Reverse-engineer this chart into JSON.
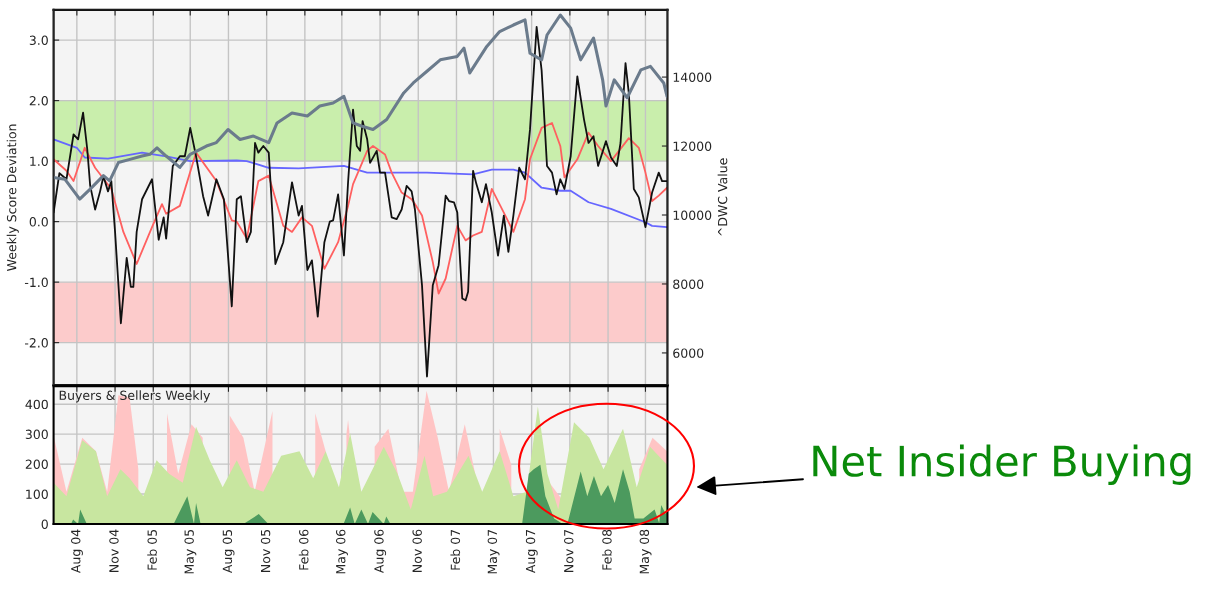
{
  "chart_data": [
    {
      "type": "line",
      "ylabel": "Weekly Score Deviation",
      "y2label": "^DWC Value",
      "tick_labels": "y",
      "grid": true,
      "xlim": [
        "2004-06-06",
        "2008-06-23"
      ],
      "ylim": [
        -2.7,
        3.5
      ],
      "y2lim": [
        5070,
        15950
      ],
      "xticks": [
        {
          "value": "2004-08-01",
          "label": null
        },
        {
          "value": "2004-11-01",
          "label": null
        },
        {
          "value": "2005-02-01",
          "label": null
        },
        {
          "value": "2005-05-01",
          "label": null
        },
        {
          "value": "2005-08-01",
          "label": null
        },
        {
          "value": "2005-11-01",
          "label": null
        },
        {
          "value": "2006-02-01",
          "label": null
        },
        {
          "value": "2006-05-01",
          "label": null
        },
        {
          "value": "2006-08-01",
          "label": null
        },
        {
          "value": "2006-11-01",
          "label": null
        },
        {
          "value": "2007-02-01",
          "label": null
        },
        {
          "value": "2007-05-01",
          "label": null
        },
        {
          "value": "2007-08-01",
          "label": null
        },
        {
          "value": "2007-11-01",
          "label": null
        },
        {
          "value": "2008-02-01",
          "label": null
        },
        {
          "value": "2008-05-01",
          "label": null
        }
      ],
      "yticks": [
        {
          "value": -2,
          "label": "-2.0"
        },
        {
          "value": -1,
          "label": "-1.0"
        },
        {
          "value": 0,
          "label": "0.0"
        },
        {
          "value": 1,
          "label": "1.0"
        },
        {
          "value": 2,
          "label": "2.0"
        },
        {
          "value": 3,
          "label": "3.0"
        }
      ],
      "y2ticks": [
        6000,
        8000,
        10000,
        12000,
        14000
      ],
      "bands": [
        {
          "axis": "y",
          "from": 1,
          "to": 2,
          "color": "#c9eeac"
        },
        {
          "axis": "y",
          "from": -2,
          "to": -1,
          "color": "#fccbcb"
        }
      ],
      "series": [
        {
          "color": "#6b7b8c",
          "axis": "y2",
          "x": [
            "2004-06-06",
            "2004-07-03",
            "2004-08-08",
            "2004-09-02",
            "2004-10-04",
            "2004-10-19",
            "2004-11-09",
            "2004-12-09",
            "2005-01-05",
            "2005-01-24",
            "2005-02-10",
            "2005-03-04",
            "2005-04-06",
            "2005-05-01",
            "2005-06-09",
            "2005-07-03",
            "2005-07-31",
            "2005-08-29",
            "2005-09-30",
            "2005-11-06",
            "2005-11-26",
            "2006-01-01",
            "2006-02-07",
            "2006-03-09",
            "2006-04-10",
            "2006-05-06",
            "2006-05-28",
            "2006-06-17",
            "2006-07-15",
            "2006-08-17",
            "2006-09-27",
            "2006-10-20",
            "2006-11-22",
            "2006-12-24",
            "2007-02-03",
            "2007-02-19",
            "2007-03-05",
            "2007-04-15",
            "2007-05-16",
            "2007-06-18",
            "2007-07-16",
            "2007-07-28",
            "2007-08-25",
            "2007-09-07",
            "2007-10-09",
            "2007-11-03",
            "2007-11-27",
            "2007-12-28",
            "2008-01-19",
            "2008-01-27",
            "2008-02-16",
            "2008-03-18",
            "2008-04-20",
            "2008-05-13",
            "2008-06-14",
            "2008-06-22"
          ],
          "values": [
            11090,
            11040,
            10460,
            10750,
            11140,
            10990,
            11520,
            11620,
            11710,
            11760,
            11950,
            11710,
            11380,
            11760,
            12000,
            12100,
            12480,
            12190,
            12290,
            12100,
            12670,
            12960,
            12870,
            13160,
            13250,
            13440,
            12670,
            12580,
            12480,
            12770,
            13540,
            13830,
            14170,
            14500,
            14600,
            14840,
            14120,
            14890,
            15320,
            15510,
            15660,
            14690,
            14500,
            15220,
            15800,
            15420,
            14500,
            15130,
            13920,
            13160,
            13920,
            13400,
            14210,
            14310,
            13830,
            13440
          ]
        },
        {
          "color": "#6666ff",
          "x": [
            "2004-06-06",
            "2004-08-01",
            "2004-08-20",
            "2004-10-15",
            "2005-01-05",
            "2005-03-04",
            "2005-05-01",
            "2005-08-21",
            "2005-09-14",
            "2005-11-06",
            "2006-01-17",
            "2006-05-06",
            "2006-07-01",
            "2006-08-01",
            "2006-11-22",
            "2007-03-13",
            "2007-04-27",
            "2007-06-18",
            "2007-07-16",
            "2007-08-25",
            "2007-10-09",
            "2007-11-03",
            "2007-12-16",
            "2008-02-08",
            "2008-05-01",
            "2008-05-17",
            "2008-06-22"
          ],
          "values": [
            1.36,
            1.22,
            1.06,
            1.04,
            1.14,
            1.08,
            1.0,
            1.01,
            1.0,
            0.89,
            0.88,
            0.92,
            0.81,
            0.81,
            0.81,
            0.78,
            0.86,
            0.86,
            0.81,
            0.56,
            0.51,
            0.51,
            0.32,
            0.21,
            -0.01,
            -0.07,
            -0.09
          ]
        },
        {
          "color": "#ff6060",
          "x": [
            "2004-06-06",
            "2004-07-07",
            "2004-07-24",
            "2004-08-20",
            "2004-09-14",
            "2004-10-23",
            "2004-11-21",
            "2004-12-23",
            "2005-01-29",
            "2005-02-22",
            "2005-03-04",
            "2005-04-06",
            "2005-05-15",
            "2005-07-03",
            "2005-08-09",
            "2005-08-21",
            "2005-09-14",
            "2005-10-12",
            "2005-11-06",
            "2005-12-11",
            "2006-01-01",
            "2006-01-25",
            "2006-02-18",
            "2006-03-20",
            "2006-04-22",
            "2006-05-16",
            "2006-05-28",
            "2006-07-01",
            "2006-07-15",
            "2006-08-13",
            "2006-08-29",
            "2006-09-22",
            "2006-10-16",
            "2006-10-24",
            "2006-11-10",
            "2006-12-06",
            "2006-12-20",
            "2007-01-06",
            "2007-02-03",
            "2007-02-23",
            "2007-03-13",
            "2007-04-03",
            "2007-04-27",
            "2007-05-26",
            "2007-06-18",
            "2007-07-16",
            "2007-07-28",
            "2007-08-25",
            "2007-09-19",
            "2007-10-09",
            "2007-10-19",
            "2007-11-19",
            "2007-12-16",
            "2008-01-08",
            "2008-02-08",
            "2008-03-22",
            "2008-04-15",
            "2008-05-01",
            "2008-05-17",
            "2008-06-02",
            "2008-06-22"
          ],
          "values": [
            1.03,
            0.84,
            0.67,
            1.22,
            0.89,
            0.54,
            -0.17,
            -0.7,
            -0.09,
            0.29,
            0.13,
            0.26,
            1.14,
            0.67,
            0.02,
            0.0,
            -0.28,
            0.67,
            0.76,
            -0.07,
            -0.17,
            0.07,
            -0.07,
            -0.78,
            -0.34,
            0.26,
            0.62,
            1.17,
            1.25,
            1.11,
            0.81,
            0.48,
            0.37,
            0.29,
            0.1,
            -0.67,
            -1.19,
            -0.94,
            -0.07,
            -0.31,
            -0.23,
            -0.17,
            0.54,
            0.15,
            -0.17,
            0.37,
            1.03,
            1.55,
            1.63,
            1.25,
            0.73,
            1.03,
            1.47,
            1.25,
            1.0,
            1.38,
            1.22,
            0.81,
            0.34,
            0.43,
            0.56
          ]
        },
        {
          "color": "#111111",
          "x": [
            "2004-06-06",
            "2004-06-20",
            "2004-07-07",
            "2004-07-24",
            "2004-08-04",
            "2004-08-16",
            "2004-08-26",
            "2004-09-02",
            "2004-09-14",
            "2004-09-26",
            "2004-10-04",
            "2004-10-15",
            "2004-10-23",
            "2004-11-01",
            "2004-11-15",
            "2004-11-29",
            "2004-12-09",
            "2004-12-15",
            "2004-12-23",
            "2005-01-05",
            "2005-01-29",
            "2005-02-14",
            "2005-02-26",
            "2005-03-04",
            "2005-03-20",
            "2005-04-06",
            "2005-04-18",
            "2005-05-01",
            "2005-05-15",
            "2005-06-01",
            "2005-06-13",
            "2005-07-03",
            "2005-07-21",
            "2005-08-09",
            "2005-08-21",
            "2005-08-31",
            "2005-09-14",
            "2005-09-24",
            "2005-10-04",
            "2005-10-12",
            "2005-10-24",
            "2005-11-06",
            "2005-11-22",
            "2005-12-11",
            "2006-01-01",
            "2006-01-17",
            "2006-01-25",
            "2006-02-07",
            "2006-02-18",
            "2006-03-04",
            "2006-03-20",
            "2006-04-02",
            "2006-04-10",
            "2006-04-22",
            "2006-05-06",
            "2006-05-16",
            "2006-05-28",
            "2006-06-06",
            "2006-06-14",
            "2006-06-20",
            "2006-07-01",
            "2006-07-08",
            "2006-07-24",
            "2006-08-01",
            "2006-08-13",
            "2006-08-29",
            "2006-09-10",
            "2006-09-22",
            "2006-10-04",
            "2006-10-16",
            "2006-10-24",
            "2006-11-10",
            "2006-11-22",
            "2006-12-06",
            "2006-12-20",
            "2007-01-06",
            "2007-01-14",
            "2007-01-26",
            "2007-02-03",
            "2007-02-15",
            "2007-02-23",
            "2007-03-01",
            "2007-03-13",
            "2007-03-21",
            "2007-04-03",
            "2007-04-13",
            "2007-04-27",
            "2007-05-12",
            "2007-05-26",
            "2007-06-06",
            "2007-06-18",
            "2007-07-02",
            "2007-07-16",
            "2007-07-28",
            "2007-08-13",
            "2007-08-25",
            "2007-09-07",
            "2007-09-19",
            "2007-09-30",
            "2007-10-09",
            "2007-10-19",
            "2007-11-03",
            "2007-11-19",
            "2007-12-05",
            "2007-12-16",
            "2007-12-28",
            "2008-01-08",
            "2008-01-27",
            "2008-02-08",
            "2008-02-22",
            "2008-03-02",
            "2008-03-14",
            "2008-03-22",
            "2008-04-03",
            "2008-04-15",
            "2008-05-01",
            "2008-05-17",
            "2008-06-02",
            "2008-06-10",
            "2008-06-22"
          ],
          "values": [
            0.15,
            0.8,
            0.7,
            1.44,
            1.36,
            1.8,
            1.2,
            0.6,
            0.2,
            0.5,
            0.75,
            0.5,
            0.67,
            -0.17,
            -1.68,
            -0.6,
            -1.08,
            -1.08,
            -0.17,
            0.37,
            0.7,
            -0.3,
            0.07,
            -0.28,
            0.92,
            1.08,
            1.08,
            1.55,
            1.08,
            0.42,
            0.1,
            0.7,
            0.37,
            -1.4,
            0.37,
            0.42,
            -0.34,
            -0.17,
            1.3,
            1.14,
            1.25,
            1.14,
            -0.7,
            -0.34,
            0.65,
            0.1,
            0.26,
            -0.8,
            -0.64,
            -1.57,
            -0.34,
            0.0,
            0.02,
            0.45,
            -0.56,
            0.65,
            1.85,
            1.25,
            1.17,
            1.66,
            1.36,
            0.97,
            1.17,
            0.81,
            0.81,
            0.07,
            0.04,
            0.2,
            0.59,
            0.5,
            0.2,
            -1.05,
            -2.56,
            -1.05,
            -0.72,
            0.43,
            0.34,
            0.32,
            0.15,
            -1.27,
            -1.3,
            -1.16,
            0.84,
            0.62,
            0.32,
            0.62,
            0.15,
            -0.56,
            0.1,
            -0.5,
            0.1,
            0.89,
            0.7,
            1.52,
            3.22,
            2.5,
            0.92,
            0.81,
            0.45,
            0.7,
            0.54,
            1.08,
            2.4,
            1.69,
            1.3,
            1.41,
            0.92,
            1.33,
            1.06,
            0.92,
            1.3,
            2.62,
            2.12,
            0.54,
            0.4,
            -0.09,
            0.48,
            0.81,
            0.67,
            0.67
          ]
        }
      ]
    },
    {
      "type": "area",
      "title": "Buyers & Sellers Weekly",
      "grid": true,
      "annotations": [
        "Net Insider Buying"
      ],
      "xlim": [
        "2004-06-06",
        "2008-06-23"
      ],
      "ylim": [
        0,
        460
      ],
      "yticks": [
        0,
        100,
        200,
        300,
        400
      ],
      "xticks": [
        {
          "value": "2004-08-01",
          "label": "Aug 04"
        },
        {
          "value": "2004-11-01",
          "label": "Nov 04"
        },
        {
          "value": "2005-02-01",
          "label": "Feb 05"
        },
        {
          "value": "2005-05-01",
          "label": "May 05"
        },
        {
          "value": "2005-08-01",
          "label": "Aug 05"
        },
        {
          "value": "2005-11-01",
          "label": "Nov 05"
        },
        {
          "value": "2006-02-01",
          "label": "Feb 06"
        },
        {
          "value": "2006-05-01",
          "label": "May 06"
        },
        {
          "value": "2006-08-01",
          "label": "Aug 06"
        },
        {
          "value": "2006-11-01",
          "label": "Nov 06"
        },
        {
          "value": "2007-02-01",
          "label": "Feb 07"
        },
        {
          "value": "2007-05-01",
          "label": "May 07"
        },
        {
          "value": "2007-08-01",
          "label": "Aug 07"
        },
        {
          "value": "2007-11-01",
          "label": "Nov 07"
        },
        {
          "value": "2008-02-01",
          "label": "Feb 08"
        },
        {
          "value": "2008-05-01",
          "label": "May 08"
        }
      ],
      "series": [
        {
          "color": "#ffc4c4",
          "x": [
            "2004-06-06",
            "2004-07-07",
            "2004-08-14",
            "2004-09-16",
            "2004-10-13",
            "2004-11-09",
            "2004-12-06",
            "2004-12-27",
            "2005-01-24",
            "2005-03-06",
            "2005-04-02",
            "2005-05-04",
            "2005-05-31",
            "2005-06-27",
            "2005-08-04",
            "2005-09-06",
            "2005-10-03",
            "2005-11-15",
            "2005-12-17",
            "2006-01-14",
            "2006-02-26",
            "2006-03-23",
            "2006-04-24",
            "2006-05-12",
            "2006-05-16",
            "2006-05-19",
            "2006-06-17",
            "2006-07-19",
            "2006-08-21",
            "2006-09-22",
            "2006-10-19",
            "2006-11-21",
            "2006-12-18",
            "2007-01-14",
            "2007-02-21",
            "2007-03-18",
            "2007-04-19",
            "2007-05-16",
            "2007-06-13",
            "2007-07-09",
            "2007-08-06",
            "2007-09-13",
            "2007-10-15",
            "2007-11-17",
            "2007-12-19",
            "2008-01-21",
            "2008-02-17",
            "2008-03-19",
            "2008-04-16",
            "2008-05-18",
            "2008-06-22"
          ],
          "values": [
            295,
            108,
            288,
            243,
            108,
            430,
            422,
            183,
            null,
            370,
            168,
            333,
            288,
            null,
            362,
            288,
            108,
            377,
            null,
            null,
            370,
            243,
            null,
            300,
            347,
            310,
            null,
            258,
            318,
            108,
            108,
            445,
            288,
            108,
            333,
            168,
            null,
            318,
            198,
            null,
            null,
            138,
            78,
            null,
            null,
            null,
            null,
            null,
            183,
            288,
            243
          ]
        },
        {
          "color": "#c8e6a0",
          "x": [
            "2004-06-06",
            "2004-07-07",
            "2004-08-14",
            "2004-09-16",
            "2004-10-13",
            "2004-11-14",
            "2004-12-06",
            "2005-01-08",
            "2005-02-09",
            "2005-03-11",
            "2005-04-13",
            "2005-05-15",
            "2005-06-17",
            "2005-07-18",
            "2005-08-21",
            "2005-09-22",
            "2005-10-24",
            "2005-12-06",
            "2006-01-19",
            "2006-02-21",
            "2006-03-23",
            "2006-04-24",
            "2006-05-21",
            "2006-06-17",
            "2006-08-10",
            "2006-09-12",
            "2006-10-14",
            "2006-11-16",
            "2006-12-07",
            "2007-01-09",
            "2007-03-02",
            "2007-04-04",
            "2007-05-16",
            "2007-06-18",
            "2007-07-20",
            "2007-08-16",
            "2007-09-08",
            "2007-10-04",
            "2007-11-11",
            "2007-12-18",
            "2008-01-21",
            "2008-03-08",
            "2008-04-10",
            "2008-05-12",
            "2008-06-22"
          ],
          "values": [
            138,
            93,
            280,
            243,
            93,
            183,
            153,
            93,
            213,
            168,
            138,
            325,
            213,
            123,
            213,
            123,
            108,
            228,
            243,
            153,
            243,
            123,
            303,
            108,
            258,
            168,
            48,
            228,
            93,
            108,
            228,
            108,
            243,
            93,
            108,
            392,
            168,
            48,
            340,
            288,
            183,
            318,
            123,
            258,
            198
          ]
        },
        {
          "color": "#4c9a5e",
          "x": [
            "2004-06-06",
            "2004-07-18",
            "2004-07-23",
            "2004-08-04",
            "2004-08-09",
            "2004-08-25",
            "2005-03-22",
            "2005-04-24",
            "2005-05-10",
            "2005-05-15",
            "2005-05-26",
            "2005-09-06",
            "2005-10-13",
            "2005-11-05",
            "2006-05-05",
            "2006-05-21",
            "2006-06-01",
            "2006-06-17",
            "2006-07-03",
            "2006-07-14",
            "2006-08-10",
            "2006-08-16",
            "2006-08-26",
            "2007-07-09",
            "2007-07-25",
            "2007-08-06",
            "2007-08-22",
            "2007-09-03",
            "2007-09-24",
            "2007-10-15",
            "2007-10-26",
            "2007-11-17",
            "2007-11-27",
            "2007-12-13",
            "2007-12-29",
            "2008-01-15",
            "2008-02-01",
            "2008-02-17",
            "2008-03-08",
            "2008-03-24",
            "2008-04-05",
            "2008-04-26",
            "2008-05-23",
            "2008-06-03",
            "2008-06-08",
            "2008-06-19",
            "2008-06-22"
          ],
          "values": [
            0,
            0,
            15,
            0,
            48,
            0,
            0,
            93,
            0,
            70,
            0,
            0,
            33,
            0,
            0,
            55,
            0,
            48,
            0,
            40,
            0,
            25,
            0,
            0,
            168,
            183,
            198,
            93,
            18,
            0,
            0,
            120,
            175,
            93,
            160,
            93,
            130,
            70,
            183,
            108,
            18,
            18,
            48,
            3,
            63,
            33,
            48
          ]
        }
      ]
    }
  ]
}
